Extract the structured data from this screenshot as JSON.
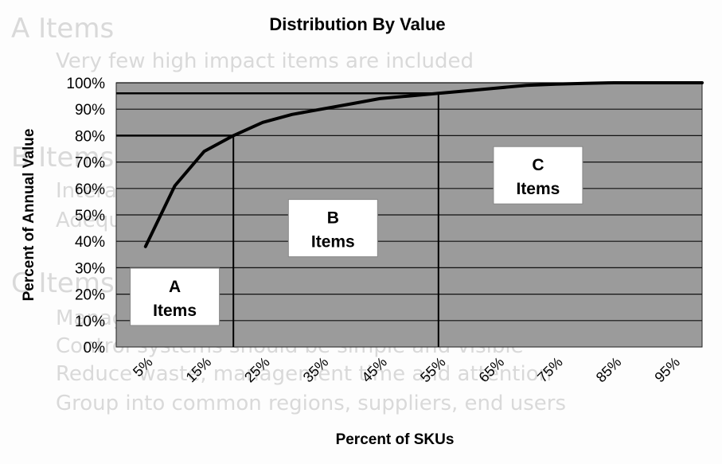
{
  "chart_data": {
    "type": "line",
    "title": "Distribution By Value",
    "xlabel": "Percent of SKUs",
    "ylabel": "Percent of Annual Value",
    "x_categories": [
      "5%",
      "15%",
      "25%",
      "35%",
      "45%",
      "55%",
      "65%",
      "75%",
      "85%",
      "95%"
    ],
    "y_ticks": [
      "0%",
      "10%",
      "20%",
      "30%",
      "40%",
      "50%",
      "60%",
      "70%",
      "80%",
      "90%",
      "100%"
    ],
    "ylim": [
      0,
      100
    ],
    "xlim": [
      0,
      100
    ],
    "grid": true,
    "series": [
      {
        "x": [
          5,
          10,
          15,
          20,
          25,
          30,
          35,
          40,
          45,
          50,
          55,
          60,
          65,
          70,
          75,
          80,
          85,
          90,
          95,
          100
        ],
        "y": [
          38,
          61,
          74,
          80,
          85,
          88,
          90,
          92,
          94,
          95,
          96,
          97,
          98,
          99,
          99.5,
          99.8,
          100,
          100,
          100,
          100
        ]
      }
    ],
    "reference_lines": [
      {
        "x": 20,
        "y": 80
      },
      {
        "x": 55,
        "y": 96
      }
    ],
    "annotations": [
      {
        "label": [
          "A",
          "Items"
        ],
        "cx": 10,
        "cy": 19
      },
      {
        "label": [
          "B",
          "Items"
        ],
        "cx": 37,
        "cy": 45
      },
      {
        "label": [
          "C",
          "Items"
        ],
        "cx": 72,
        "cy": 65
      }
    ],
    "colors": {
      "plot_background": "#9b9b9b",
      "line": "#000000",
      "gridline": "#111111",
      "annotation_box": "#ffffff"
    }
  },
  "background_text": [
    "A Items",
    "Very few high impact items are included",
    "B Items",
    "Interaction with moderately value items",
    "Adequate control of the moderately valued",
    "C Items",
    "Manage as aggregate - minimal attention",
    "Control systems should be simple and visible",
    "Reduce waste, management time and attention",
    "Group into common regions, suppliers, end users"
  ]
}
